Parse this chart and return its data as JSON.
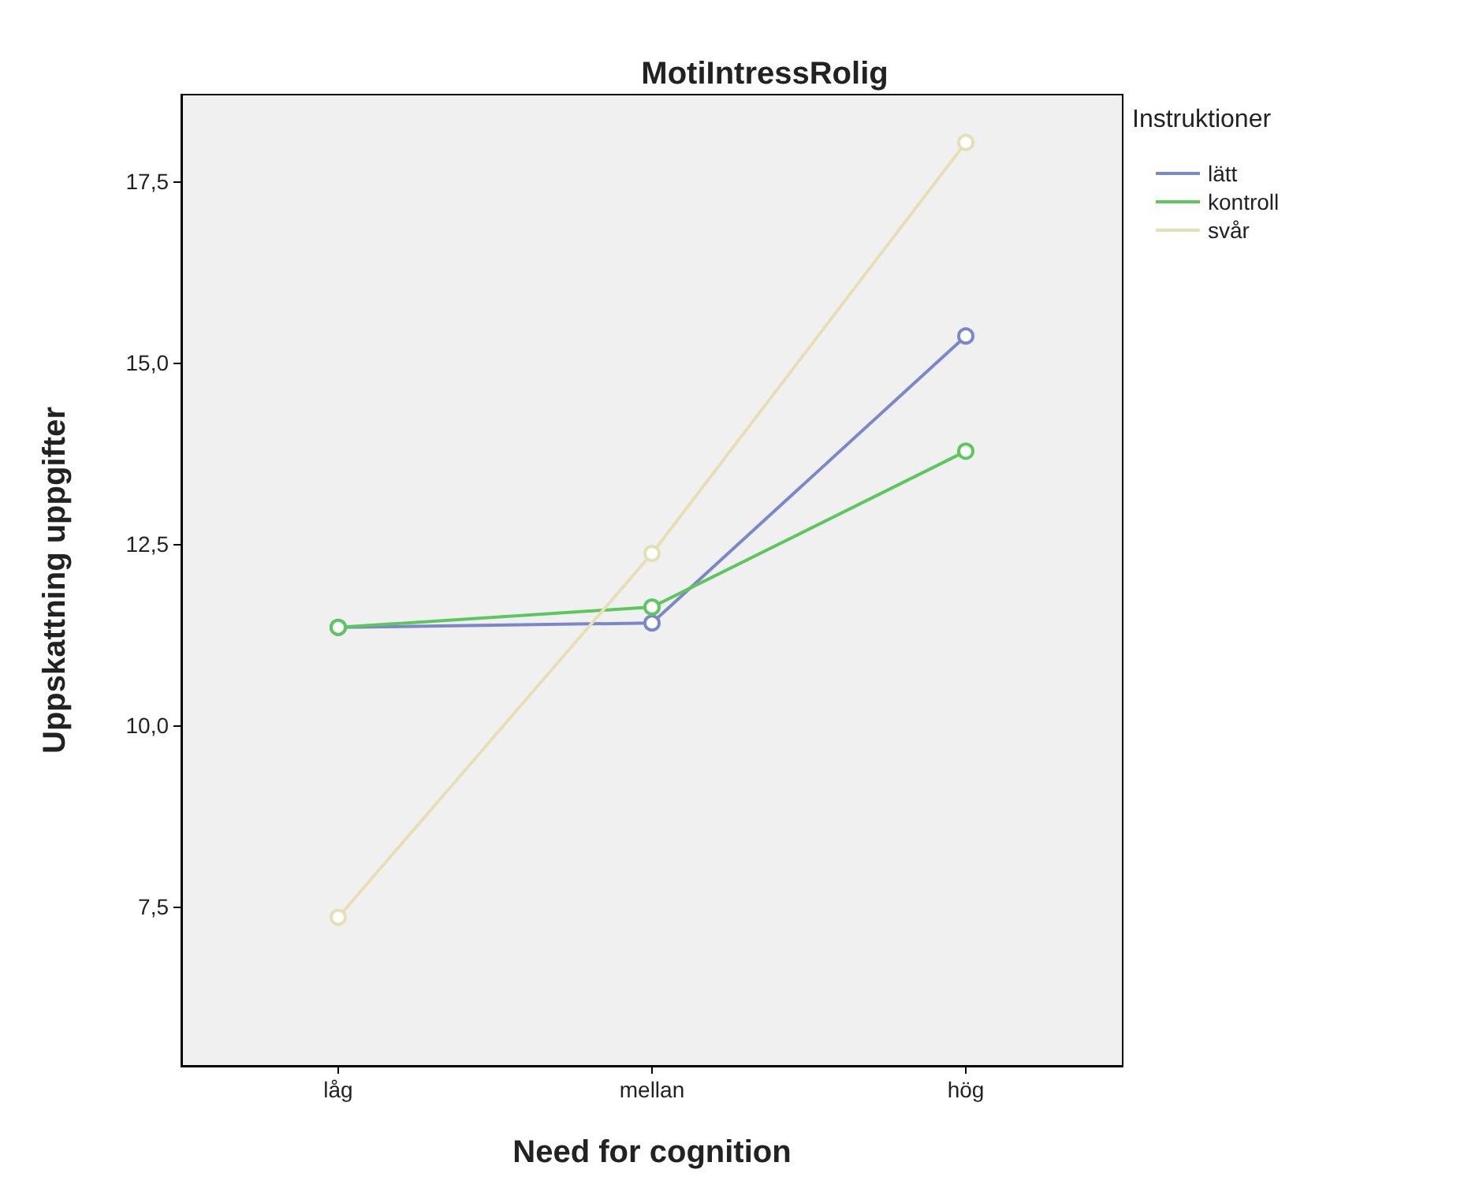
{
  "chart_data": {
    "type": "line",
    "title": "MotiIntressRolig",
    "xlabel": "Need for cognition",
    "ylabel": "Uppskattning uppgifter",
    "legend_title": "Instruktioner",
    "categories": [
      "låg",
      "mellan",
      "hög"
    ],
    "series": [
      {
        "name": "lätt",
        "color": "#7b87c9",
        "values": [
          11.35,
          11.41,
          15.37
        ]
      },
      {
        "name": "kontroll",
        "color": "#5ec65e",
        "values": [
          11.35,
          11.63,
          13.78
        ]
      },
      {
        "name": "svår",
        "color": "#e6dfb5",
        "values": [
          7.35,
          12.37,
          18.04
        ]
      }
    ],
    "ylim": [
      5.3,
      18.7
    ],
    "yticks": [
      {
        "value": 7.5,
        "label": "7,5"
      },
      {
        "value": 10,
        "label": "10,0"
      },
      {
        "value": 12.5,
        "label": "12,5"
      },
      {
        "value": 15,
        "label": "15,0"
      },
      {
        "value": 17.5,
        "label": "17,5"
      }
    ],
    "grid": false,
    "legend": "top right",
    "marker": "circle",
    "line_style": "solid"
  }
}
